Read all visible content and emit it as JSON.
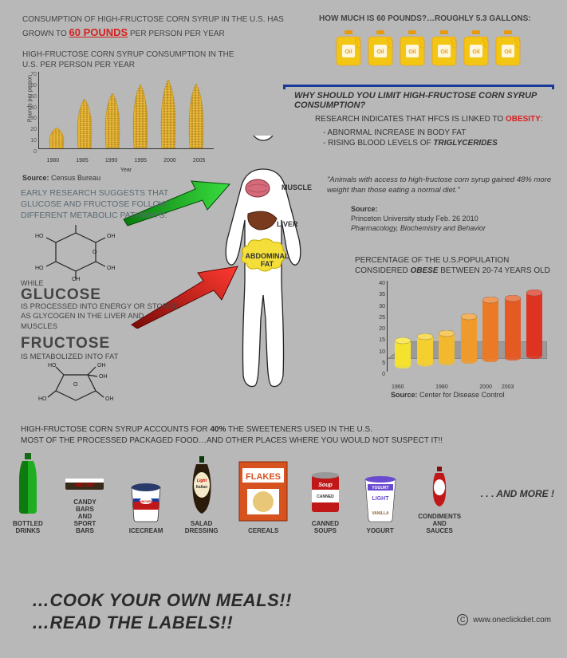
{
  "colors": {
    "bg": "#b8b8b8",
    "red": "#d6201e",
    "blue": "#1a3a9a",
    "green_arrow": "#1fb324",
    "red_arrow": "#e01c18",
    "jug_yellow": "#f3c614",
    "jug_orange": "#e89a0c",
    "corn_yellow": "#e9b93b",
    "corn_dark": "#b88a1f"
  },
  "headline_left": {
    "pre": "CONSUMPTION OF HIGH-FRUCTOSE CORN SYRUP IN THE U.S. HAS GROWN TO ",
    "highlight": "60 POUNDS",
    "post": " PER PERSON PER YEAR"
  },
  "headline_right": {
    "pre": "HOW MUCH IS ",
    "bold1": "60 POUNDS",
    "mid": "?…ROUGHLY ",
    "bold2": "5.3 GALLONS",
    "post": ":"
  },
  "jug_count": 6,
  "hfcs_chart": {
    "title": "HIGH-FRUCTOSE CORN SYRUP CONSUMPTION IN THE U.S. PER PERSON PER YEAR",
    "ylabel": "Pounds per person",
    "xlabel": "Year",
    "ylim": [
      0,
      70
    ],
    "ytick_step": 10,
    "categories": [
      "1980",
      "1985",
      "1990",
      "1995",
      "2000",
      "2005"
    ],
    "values": [
      19,
      45,
      50,
      58,
      63,
      59
    ],
    "source_label": "Source:",
    "source_value": "Census Bureau"
  },
  "bracket": {
    "title": "WHY SHOULD YOU LIMIT HIGH-FRUCTOSE CORN SYRUP CONSUMPTION?",
    "research_pre": "RESEARCH INDICATES THAT HFCS IS LINKED TO ",
    "research_highlight": "OBESITY",
    "research_post": ":",
    "bullets": [
      "- ABNORMAL INCREASE IN BODY FAT",
      "- RISING BLOOD  LEVELS OF TRIGLYCERIDES"
    ]
  },
  "quote": {
    "text": "\"Animals with access to high-fructose corn syrup gained 48% more weight than those eating a normal diet.\"",
    "source_label": "Source:",
    "source_line1": "Princeton University study Feb. 26 2010",
    "source_line2": "Pharmacology, Biochemistry and Behavior"
  },
  "human": {
    "muscle_label": "MUSCLE",
    "liver_label": "LIVER",
    "fat_label": "ABDOMINAL FAT",
    "muscle_color": "#d46a7a",
    "liver_color": "#7a3a1e",
    "fat_color": "#f4df3a"
  },
  "pathway": {
    "intro": "EARLY RESEARCH SUGGESTS THAT GLUCOSE AND FRUCTOSE FOLLOW DIFFERENT METABOLIC PATHWAYS:",
    "while": "WHILE",
    "glucose_name": "GLUCOSE",
    "glucose_desc": "IS PROCESSED INTO ENERGY OR STORED AS GLYCOGEN IN THE LIVER AND MUSCLES",
    "fructose_name": "FRUCTOSE",
    "fructose_desc": "IS METABOLIZED INTO FAT"
  },
  "obese_chart": {
    "title_pre": "PERCENTAGE OF THE U.S.POPULATION CONSIDERED ",
    "title_bold": "OBESE",
    "title_post": " BETWEEN 20-74 YEARS OLD",
    "ylim": [
      0,
      40
    ],
    "ytick_step": 5,
    "categories": [
      "1960",
      "",
      "1980",
      "",
      "2000",
      "2003",
      ""
    ],
    "values": [
      13,
      14,
      15,
      23,
      31,
      31,
      33
    ],
    "bar_colors": [
      "#f5e22e",
      "#f5cf2e",
      "#f2b82e",
      "#ef9a2a",
      "#ea7a26",
      "#e55a22",
      "#de3320"
    ],
    "source_label": "Source:",
    "source_value": "Center for Disease Control"
  },
  "sweetener": {
    "line1_pre": "HIGH-FRUCTOSE CORN SYRUP ACCOUNTS FOR ",
    "line1_bold": "40%",
    "line1_post": " THE SWEETENERS USED IN THE U.S.",
    "line2": "MOST OF THE PROCESSED PACKAGED FOOD…AND OTHER PLACES WHERE YOU WOULD NOT SUSPECT IT!!"
  },
  "products": [
    {
      "key": "bottle",
      "label": "BOTTLED DRINKS"
    },
    {
      "key": "candy",
      "label": "CANDY BARS AND SPORT BARS"
    },
    {
      "key": "ice",
      "label": "ICECREAM"
    },
    {
      "key": "salad",
      "label": "SALAD DRESSING"
    },
    {
      "key": "cereal",
      "label": "CEREALS"
    },
    {
      "key": "soup",
      "label": "CANNED SOUPS"
    },
    {
      "key": "yogurt",
      "label": "YOGURT"
    },
    {
      "key": "sauce",
      "label": "CONDIMENTS AND SAUCES"
    }
  ],
  "andmore": ". . . AND MORE !",
  "slogan1": "…COOK YOUR OWN MEALS!!",
  "slogan2": "…READ THE LABELS!!",
  "credit": "www.oneclickdiet.com"
}
